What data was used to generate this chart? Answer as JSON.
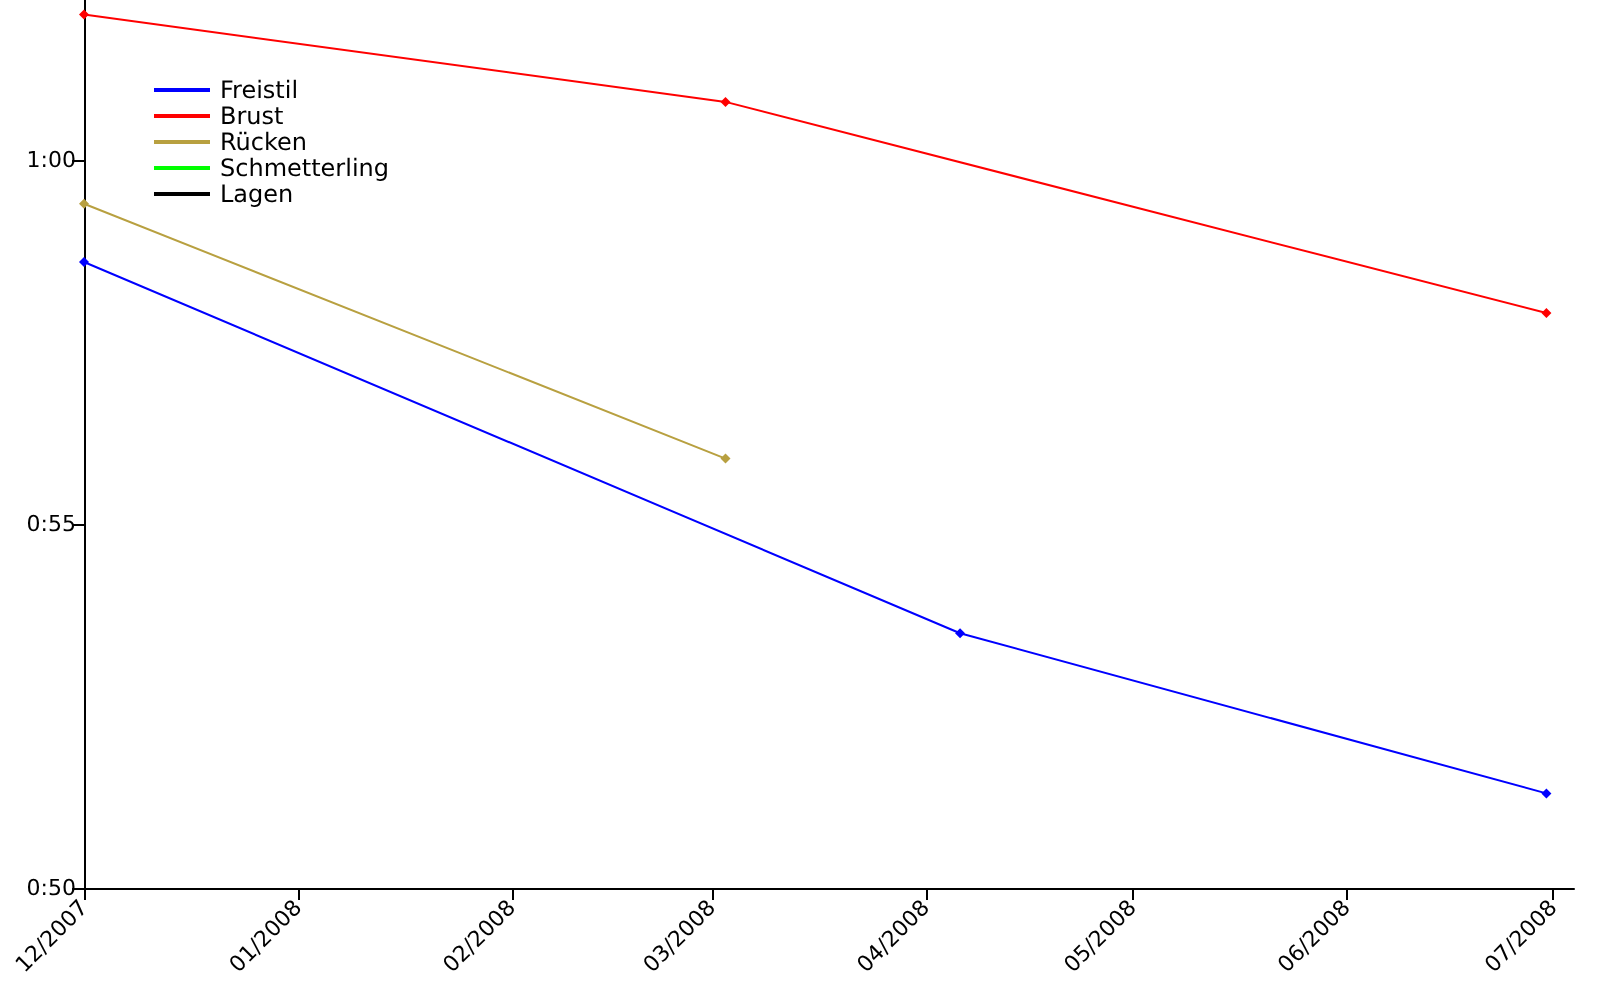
{
  "chart_data": {
    "type": "line",
    "series": [
      {
        "name": "Freistil",
        "color": "#0000ff",
        "x": [
          "2007-12-01",
          "2008-04-06",
          "2008-06-30"
        ],
        "values": [
          58.6,
          53.5,
          51.3
        ]
      },
      {
        "name": "Brust",
        "color": "#ff0000",
        "x": [
          "2007-12-01",
          "2008-03-03",
          "2008-06-30"
        ],
        "values": [
          62.0,
          60.8,
          57.9
        ]
      },
      {
        "name": "Rücken",
        "color": "#b8a040",
        "x": [
          "2007-12-01",
          "2008-03-03"
        ],
        "values": [
          59.4,
          55.9
        ]
      },
      {
        "name": "Schmetterling",
        "color": "#00ff00"
      },
      {
        "name": "Lagen",
        "color": "#000000"
      }
    ],
    "xlim": [
      "2007-12-01",
      "2008-07-04"
    ],
    "xticks": [
      {
        "value": "2007-12-01",
        "label": "12/2007"
      },
      {
        "value": "2008-01-01",
        "label": "01/2008"
      },
      {
        "value": "2008-02-01",
        "label": "02/2008"
      },
      {
        "value": "2008-03-01",
        "label": "03/2008"
      },
      {
        "value": "2008-04-01",
        "label": "04/2008"
      },
      {
        "value": "2008-05-01",
        "label": "05/2008"
      },
      {
        "value": "2008-06-01",
        "label": "06/2008"
      },
      {
        "value": "2008-07-01",
        "label": "07/2008"
      }
    ],
    "ylim": [
      50,
      62.2
    ],
    "yticks": [
      {
        "value": 50,
        "label": "0:50"
      },
      {
        "value": 55,
        "label": "0:55"
      },
      {
        "value": 60,
        "label": "1:00"
      }
    ],
    "grid": false,
    "legend": "top left",
    "marker": "diamond",
    "line_style": "solid"
  }
}
